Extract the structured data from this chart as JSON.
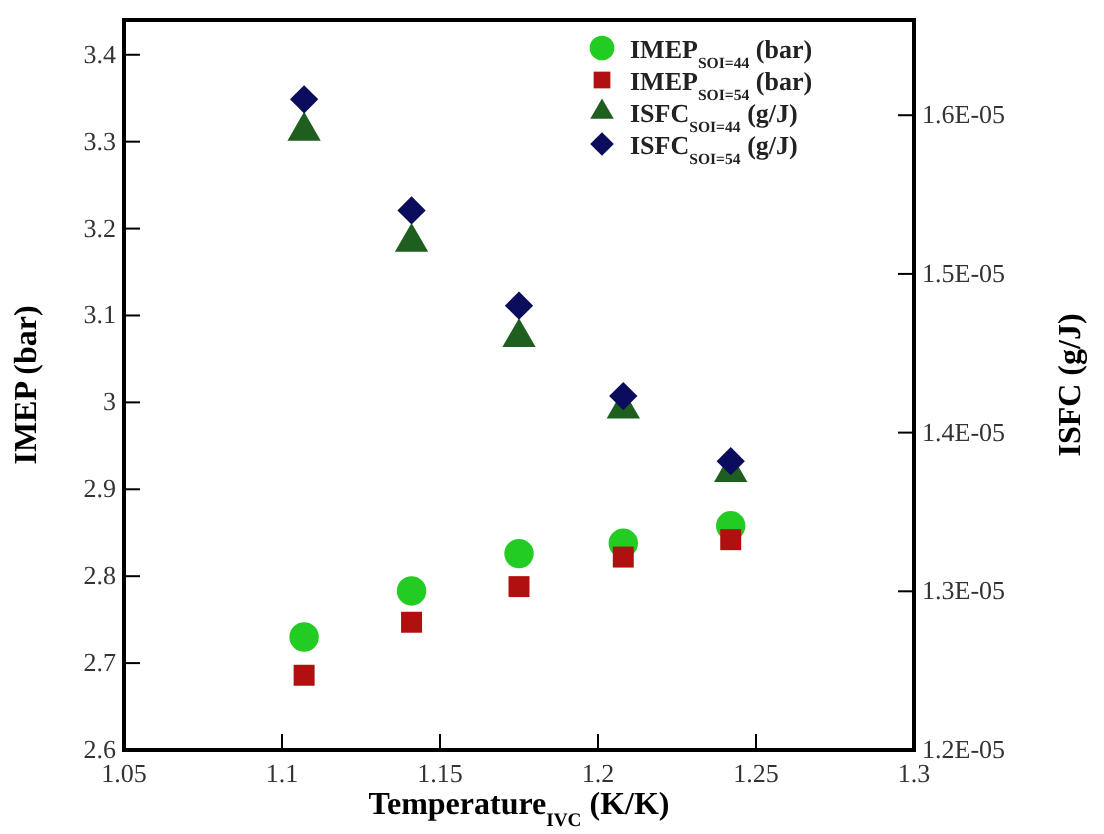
{
  "chart_data": {
    "type": "scatter",
    "xlabel": "Temperature$_{IVC}$ (K/K)",
    "ylabel": "IMEP (bar)",
    "y2label": "ISFC  (g/J)",
    "x": [
      1.107,
      1.141,
      1.175,
      1.208,
      1.242
    ],
    "xlim": [
      1.05,
      1.3
    ],
    "xticks": [
      1.05,
      1.1,
      1.15,
      1.2,
      1.25,
      1.3
    ],
    "ylim": [
      2.6,
      3.44
    ],
    "yticks": [
      2.6,
      2.7,
      2.8,
      2.9,
      3,
      3.1,
      3.2,
      3.3,
      3.4
    ],
    "y2lim": [
      1.2e-05,
      1.66e-05
    ],
    "y2ticks": [
      {
        "value": 1.2e-05,
        "label": "1.2E-05"
      },
      {
        "value": 1.3e-05,
        "label": "1.3E-05"
      },
      {
        "value": 1.4e-05,
        "label": "1.4E-05"
      },
      {
        "value": 1.5e-05,
        "label": "1.5E-05"
      },
      {
        "value": 1.6e-05,
        "label": "1.6E-05"
      }
    ],
    "grid": false,
    "legend": "top right",
    "series": [
      {
        "name": "IMEP$_{SOI=44}$ (bar)",
        "color": "#22cc22",
        "marker": "circle",
        "values": [
          2.73,
          2.783,
          2.826,
          2.838,
          2.858
        ]
      },
      {
        "name": "IMEP$_{SOI=54}$ (bar)",
        "color": "#b01010",
        "marker": "square",
        "values": [
          2.686,
          2.747,
          2.788,
          2.822,
          2.842
        ]
      },
      {
        "name": "ISFC$_{SOI=44}$ (g/J)",
        "color": "#1e5e1e",
        "marker": "triangle",
        "axis": "y2",
        "values": [
          1.59e-05,
          1.52e-05,
          1.46e-05,
          1.415e-05,
          1.375e-05
        ]
      },
      {
        "name": "ISFC$_{SOI=54}$ (g/J)",
        "color": "#0c0c5c",
        "marker": "diamond",
        "axis": "y2",
        "values": [
          1.61e-05,
          1.54e-05,
          1.48e-05,
          1.423e-05,
          1.382e-05
        ]
      }
    ]
  }
}
